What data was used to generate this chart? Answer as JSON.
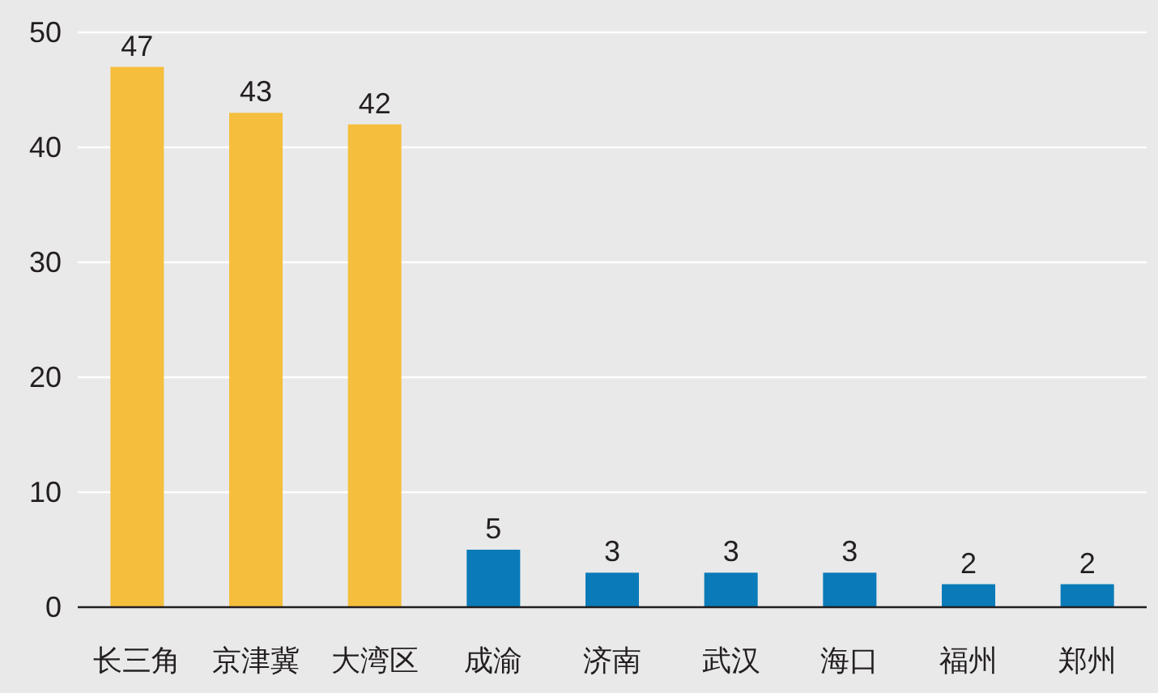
{
  "chart_data": {
    "type": "bar",
    "categories": [
      "长三角",
      "京津冀",
      "大湾区",
      "成渝",
      "济南",
      "武汉",
      "海口",
      "福州",
      "郑州"
    ],
    "values": [
      47,
      43,
      42,
      5,
      3,
      3,
      3,
      2,
      2
    ],
    "colors": [
      "#f5be3c",
      "#f5be3c",
      "#f5be3c",
      "#0a7bb8",
      "#0a7bb8",
      "#0a7bb8",
      "#0a7bb8",
      "#0a7bb8",
      "#0a7bb8"
    ],
    "ylim": [
      0,
      50
    ],
    "yticks": [
      0,
      10,
      20,
      30,
      40,
      50
    ],
    "grid": "y",
    "data_labels": true
  }
}
